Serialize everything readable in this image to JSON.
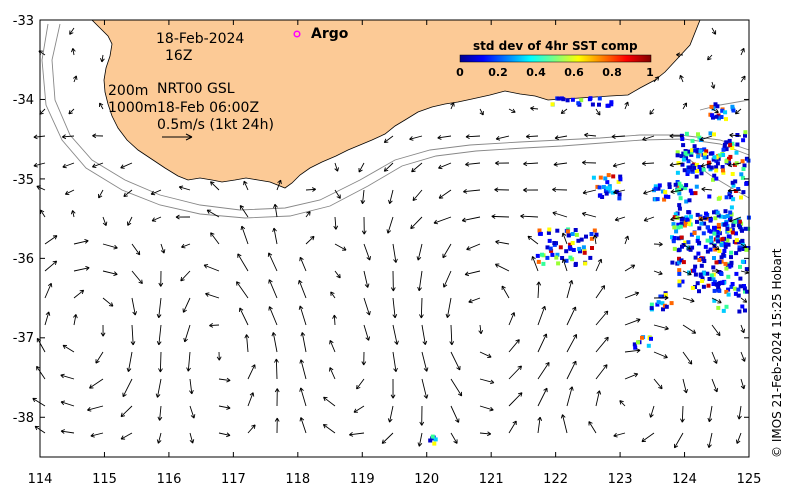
{
  "map": {
    "date": "18-Feb-2024",
    "time": "16Z",
    "depth_label_1": "200m",
    "depth_label_2": "1000m",
    "product": "NRT00 GSL",
    "product_time": "18-Feb 06:00Z",
    "scale_label": "0.5m/s (1kt 24h)",
    "argo_label": "Argo",
    "credit": "© IMOS 21-Feb-2024 15:25 Hobart",
    "x_ticks": [
      "114",
      "115",
      "116",
      "117",
      "118",
      "119",
      "120",
      "121",
      "122",
      "123",
      "124",
      "125"
    ],
    "y_ticks": [
      "-33",
      "-34",
      "-35",
      "-36",
      "-37",
      "-38"
    ],
    "colors": {
      "land": "#fcca96",
      "argo": "#ff00ff",
      "isobath": "#888888",
      "arrow": "#000000"
    },
    "argo_position": {
      "lon": 118.0,
      "lat": -33.18
    }
  },
  "legend": {
    "title": "std dev of 4hr SST comp",
    "ticks": [
      "0",
      "0.2",
      "0.4",
      "0.6",
      "0.8",
      "1"
    ],
    "colormap": "jet"
  }
}
